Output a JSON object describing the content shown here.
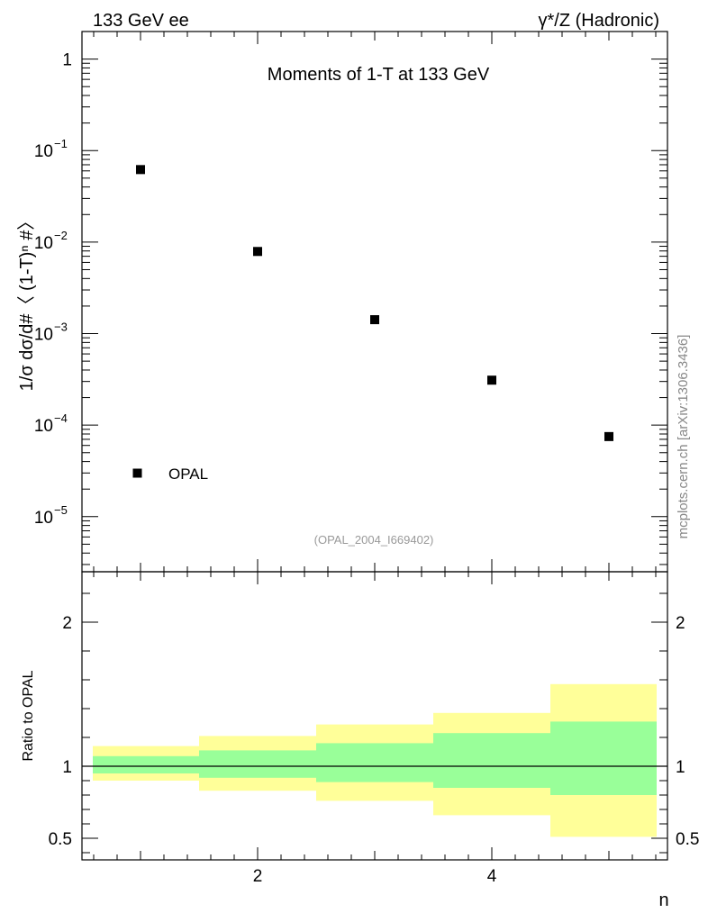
{
  "header": {
    "left": "133 GeV ee",
    "right": "γ*/Z (Hadronic)"
  },
  "side_label": "mcplots.cern.ch [arXiv:1306.3436]",
  "chart_data": [
    {
      "type": "scatter",
      "title": "Moments of 1-T at 133 GeV",
      "ylabel": "1/σ  dσ/d#〈 (1-T)ⁿ #〉",
      "xlabel": "n",
      "y_scale": "log",
      "xlim": [
        0.5,
        5.5
      ],
      "ylim": [
        2.5e-06,
        2
      ],
      "y_ticks": [
        {
          "value": 1,
          "base": "1",
          "exp": ""
        },
        {
          "value": 0.1,
          "base": "10",
          "exp": "−1"
        },
        {
          "value": 0.01,
          "base": "10",
          "exp": "−2"
        },
        {
          "value": 0.001,
          "base": "10",
          "exp": "−3"
        },
        {
          "value": 0.0001,
          "base": "10",
          "exp": "−4"
        },
        {
          "value": 1e-05,
          "base": "10",
          "exp": "−5"
        }
      ],
      "series": [
        {
          "name": "OPAL",
          "color": "#000000",
          "x": [
            1,
            2,
            3,
            4,
            5
          ],
          "y": [
            0.062,
            0.0079,
            0.00142,
            0.00031,
            7.5e-05
          ]
        }
      ],
      "legend": "bottom-left",
      "annotation": "(OPAL_2004_I669402)"
    },
    {
      "type": "area",
      "ylabel": "Ratio to OPAL",
      "xlabel": "n",
      "xlim": [
        0.5,
        5.5
      ],
      "ylim": [
        0.35,
        2.35
      ],
      "x_tick_labels": [
        "2",
        "4"
      ],
      "x_tick_values": [
        2,
        4
      ],
      "y_tick_labels": [
        "0.5",
        "1",
        "2"
      ],
      "y_tick_values": [
        0.5,
        1,
        2
      ],
      "reference_line": 1,
      "bands": [
        {
          "name": "inner",
          "color": "#99ff99",
          "bins": [
            [
              0.5,
              1.5
            ],
            [
              1.5,
              2.5
            ],
            [
              2.5,
              3.5
            ],
            [
              3.5,
              4.5
            ],
            [
              4.5,
              5.5
            ]
          ],
          "low": [
            0.95,
            0.92,
            0.89,
            0.85,
            0.8
          ],
          "high": [
            1.07,
            1.11,
            1.16,
            1.23,
            1.31
          ]
        },
        {
          "name": "outer",
          "color": "#ffff99",
          "bins": [
            [
              0.5,
              1.5
            ],
            [
              1.5,
              2.5
            ],
            [
              2.5,
              3.5
            ],
            [
              3.5,
              4.5
            ],
            [
              4.5,
              5.5
            ]
          ],
          "low": [
            0.9,
            0.83,
            0.76,
            0.66,
            0.51
          ],
          "high": [
            1.14,
            1.21,
            1.29,
            1.37,
            1.57
          ]
        }
      ]
    }
  ]
}
